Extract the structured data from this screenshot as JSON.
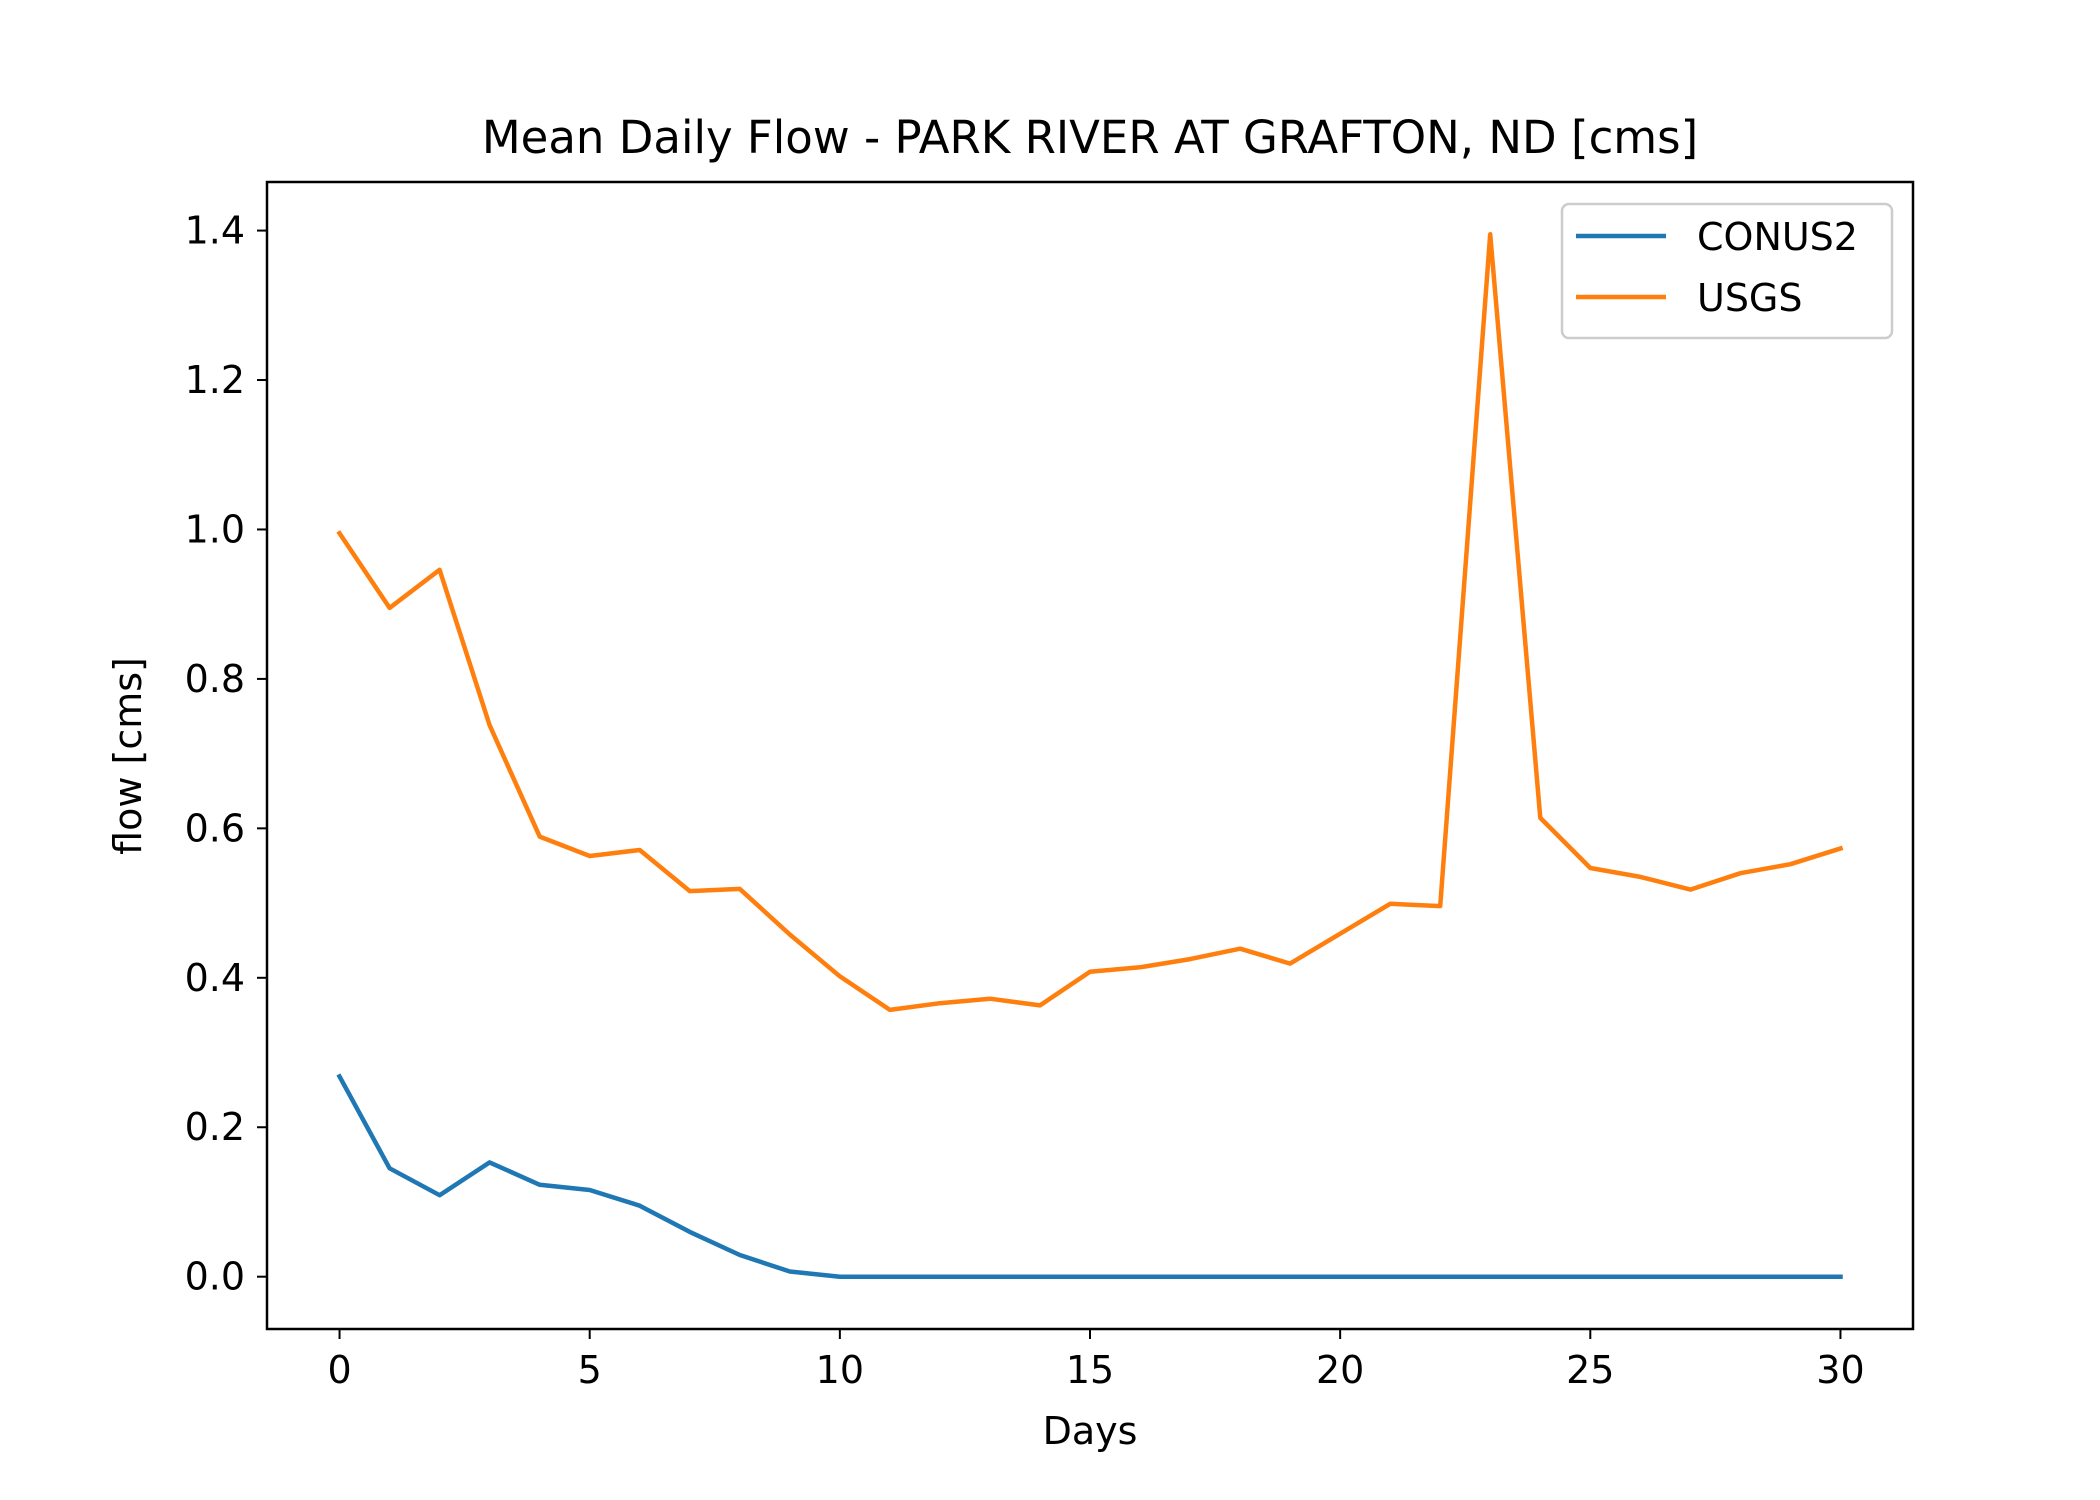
{
  "chart_data": {
    "type": "line",
    "title": "Mean Daily Flow - PARK RIVER AT GRAFTON, ND [cms]",
    "xlabel": "Days",
    "ylabel": "flow [cms]",
    "xlim": [
      -1.45,
      31.45
    ],
    "ylim": [
      -0.07,
      1.465
    ],
    "xticks": [
      0,
      5,
      10,
      15,
      20,
      25,
      30
    ],
    "yticks": [
      0.0,
      0.2,
      0.4,
      0.6,
      0.8,
      1.0,
      1.2,
      1.4
    ],
    "xtick_labels": [
      "0",
      "5",
      "10",
      "15",
      "20",
      "25",
      "30"
    ],
    "ytick_labels": [
      "0.0",
      "0.2",
      "0.4",
      "0.6",
      "0.8",
      "1.0",
      "1.2",
      "1.4"
    ],
    "grid": false,
    "legend": "top-right",
    "x": [
      0,
      1,
      2,
      3,
      4,
      5,
      6,
      7,
      8,
      9,
      10,
      11,
      12,
      13,
      14,
      15,
      16,
      17,
      18,
      19,
      20,
      21,
      22,
      23,
      24,
      25,
      26,
      27,
      28,
      29,
      30
    ],
    "series": [
      {
        "name": "CONUS2",
        "color": "#1f77b4",
        "values": [
          0.268,
          0.145,
          0.109,
          0.153,
          0.123,
          0.116,
          0.095,
          0.06,
          0.029,
          0.007,
          0.0,
          0.0,
          0.0,
          0.0,
          0.0,
          0.0,
          0.0,
          0.0,
          0.0,
          0.0,
          0.0,
          0.0,
          0.0,
          0.0,
          0.0,
          0.0,
          0.0,
          0.0,
          0.0,
          0.0,
          0.0
        ]
      },
      {
        "name": "USGS",
        "color": "#ff7f0e",
        "values": [
          0.995,
          0.895,
          0.946,
          0.738,
          0.589,
          0.563,
          0.571,
          0.516,
          0.519,
          0.458,
          0.402,
          0.357,
          0.366,
          0.372,
          0.363,
          0.408,
          0.414,
          0.425,
          0.439,
          0.419,
          0.459,
          0.499,
          0.496,
          1.395,
          0.614,
          0.547,
          0.535,
          0.518,
          0.54,
          0.552,
          0.573
        ]
      }
    ]
  }
}
